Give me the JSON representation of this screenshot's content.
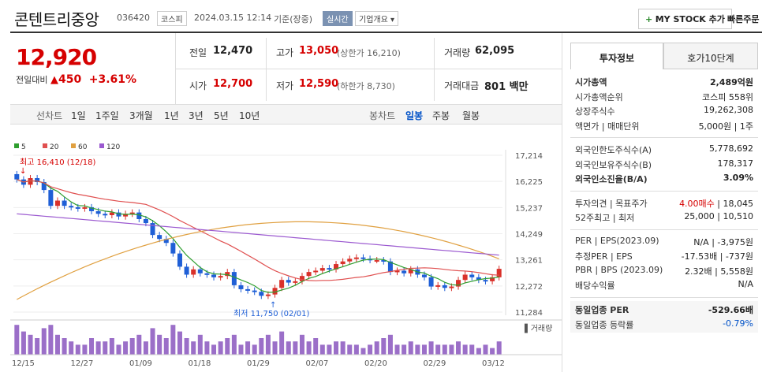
{
  "header": {
    "name": "콘텐트리중앙",
    "code": "036420",
    "market": "코스피",
    "datetime": "2024.03.15 12:14",
    "basis": "기준(장중)",
    "live_badge": "실시간",
    "company_dropdown": "기업개요",
    "mystock_button": "MY STOCK 추가",
    "quick_order": "빠른주문"
  },
  "price": {
    "current": "12,920",
    "change_label": "전일대비",
    "change": "450",
    "change_pct": "+3.61%"
  },
  "quotes": {
    "prev_label": "전일",
    "prev": "12,470",
    "high_label": "고가",
    "high": "13,050",
    "upper_limit": "(상한가 16,210)",
    "volume_label": "거래량",
    "volume": "62,095",
    "open_label": "시가",
    "open": "12,700",
    "low_label": "저가",
    "low": "12,590",
    "lower_limit": "(하한가 8,730)",
    "amount_label": "거래대금",
    "amount": "801 백만"
  },
  "period": {
    "line_label": "선차트",
    "line_items": [
      "1일",
      "1주일",
      "3개월",
      "1년",
      "3년",
      "5년",
      "10년"
    ],
    "candle_label": "봉차트",
    "candle_items": [
      "일봉",
      "주봉",
      "월봉"
    ],
    "active_candle": "일봉"
  },
  "tabs": [
    "투자정보",
    "호가10단계"
  ],
  "invest": {
    "rows1": [
      {
        "label": "시가총액",
        "value": "2,489억원",
        "bold": true
      },
      {
        "label": "시가총액순위",
        "value": "코스피 558위"
      },
      {
        "label": "상장주식수",
        "value": "19,262,308"
      },
      {
        "label": "액면가 | 매매단위",
        "value": "5,000원 | 1주"
      }
    ],
    "rows2": [
      {
        "label": "외국인한도주식수(A)",
        "value": "5,778,692"
      },
      {
        "label": "외국인보유주식수(B)",
        "value": "178,317"
      },
      {
        "label": "외국인소진율(B/A)",
        "value": "3.09%",
        "bold": true
      }
    ],
    "rows3": [
      {
        "label": "투자의견 | 목표주가",
        "value_red": "4.00매수",
        "value": "18,045"
      },
      {
        "label": "52주최고 | 최저",
        "value": "25,000 | 10,510"
      }
    ],
    "rows4": [
      {
        "label": "PER | EPS(2023.09)",
        "value": "N/A | -3,975원"
      },
      {
        "label": "추정PER | EPS",
        "value": "-17.53배 | -737원"
      },
      {
        "label": "PBR | BPS (2023.09)",
        "value": "2.32배 | 5,558원"
      },
      {
        "label": "배당수익률",
        "value": "N/A"
      }
    ],
    "rows5": [
      {
        "label": "동일업종 PER",
        "value": "-529.66배",
        "bold": true
      },
      {
        "label": "동일업종 등락률",
        "value": "-0.79%",
        "blue": true
      }
    ]
  },
  "chart_data": {
    "type": "candlestick",
    "legend": [
      {
        "name": "5",
        "color": "#2e9e2e"
      },
      {
        "name": "20",
        "color": "#e05050"
      },
      {
        "name": "60",
        "color": "#e0a040"
      },
      {
        "name": "120",
        "color": "#9b59d0"
      }
    ],
    "y_ticks": [
      "17,214",
      "16,225",
      "15,237",
      "14,249",
      "13,261",
      "12,272",
      "11,284"
    ],
    "ylim": [
      11284,
      17214
    ],
    "x_ticks": [
      "12/15",
      "12/27",
      "01/09",
      "01/18",
      "01/29",
      "02/07",
      "02/20",
      "02/29",
      "03/12"
    ],
    "high_annotation": "최고 16,410 (12/18)",
    "low_annotation": "최저 11,750 (02/01)",
    "volume_label": "거래량",
    "closes": [
      16300,
      16100,
      16350,
      16200,
      15900,
      15300,
      15500,
      15300,
      15250,
      15200,
      15250,
      15100,
      15000,
      14950,
      15050,
      14900,
      15000,
      15050,
      14800,
      14650,
      14200,
      14050,
      13900,
      13500,
      13000,
      12700,
      12900,
      12750,
      12700,
      12600,
      12650,
      12800,
      12300,
      12150,
      12100,
      12050,
      11900,
      11950,
      12200,
      12500,
      12400,
      12450,
      12650,
      12800,
      12850,
      12950,
      12900,
      13100,
      13200,
      13300,
      13350,
      13300,
      13250,
      13250,
      13200,
      12800,
      12850,
      12750,
      12900,
      12700,
      12600,
      12250,
      12300,
      12200,
      12250,
      12500,
      12700,
      12600,
      12500,
      12450,
      12600,
      12920
    ],
    "volumes": [
      0.9,
      0.7,
      0.6,
      0.5,
      0.8,
      0.9,
      0.6,
      0.5,
      0.4,
      0.3,
      0.3,
      0.5,
      0.4,
      0.4,
      0.5,
      0.3,
      0.4,
      0.5,
      0.6,
      0.4,
      0.8,
      0.6,
      0.5,
      0.9,
      0.7,
      0.5,
      0.4,
      0.6,
      0.4,
      0.3,
      0.4,
      0.5,
      0.6,
      0.3,
      0.4,
      0.3,
      0.5,
      0.6,
      0.4,
      0.7,
      0.4,
      0.4,
      0.6,
      0.4,
      0.5,
      0.3,
      0.3,
      0.4,
      0.4,
      0.3,
      0.3,
      0.2,
      0.3,
      0.4,
      0.5,
      0.6,
      0.3,
      0.3,
      0.4,
      0.3,
      0.3,
      0.4,
      0.3,
      0.3,
      0.3,
      0.4,
      0.3,
      0.3,
      0.2,
      0.3,
      0.2,
      0.4
    ]
  }
}
